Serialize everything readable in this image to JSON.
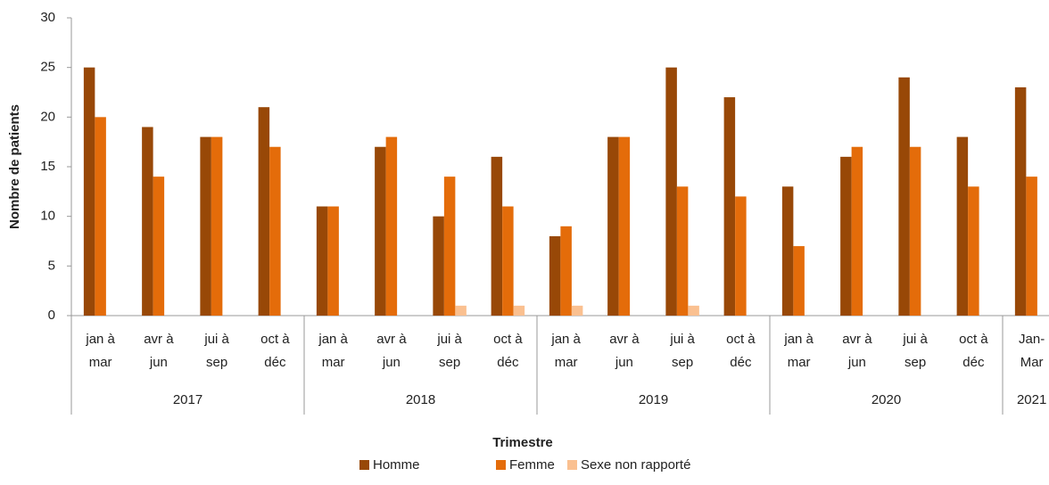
{
  "chart_data": {
    "type": "bar",
    "x_label": "Trimestre",
    "y_label": "Nombre de patients",
    "groups": [
      {
        "label": "2017",
        "categories": [
          [
            "jan à",
            "mar"
          ],
          [
            "avr à",
            "jun"
          ],
          [
            "jui à",
            "sep"
          ],
          [
            "oct à",
            "déc"
          ]
        ]
      },
      {
        "label": "2018",
        "categories": [
          [
            "jan à",
            "mar"
          ],
          [
            "avr à",
            "jun"
          ],
          [
            "jui à",
            "sep"
          ],
          [
            "oct à",
            "déc"
          ]
        ]
      },
      {
        "label": "2019",
        "categories": [
          [
            "jan à",
            "mar"
          ],
          [
            "avr à",
            "jun"
          ],
          [
            "jui à",
            "sep"
          ],
          [
            "oct à",
            "déc"
          ]
        ]
      },
      {
        "label": "2020",
        "categories": [
          [
            "jan à",
            "mar"
          ],
          [
            "avr à",
            "jun"
          ],
          [
            "jui à",
            "sep"
          ],
          [
            "oct à",
            "déc"
          ]
        ]
      },
      {
        "label": "2021",
        "categories": [
          [
            "Jan-",
            "Mar"
          ]
        ]
      }
    ],
    "series": [
      {
        "name": "Homme",
        "color": "#984807",
        "values": [
          25,
          19,
          18,
          21,
          11,
          17,
          10,
          16,
          8,
          18,
          25,
          22,
          13,
          16,
          24,
          18,
          23
        ]
      },
      {
        "name": "Femme",
        "color": "#e46c0a",
        "values": [
          20,
          14,
          18,
          17,
          11,
          18,
          14,
          11,
          9,
          18,
          13,
          12,
          7,
          17,
          17,
          13,
          14
        ]
      },
      {
        "name": "Sexe non rapporté",
        "color": "#fac090",
        "values": [
          0,
          0,
          0,
          0,
          0,
          0,
          1,
          1,
          1,
          0,
          1,
          0,
          0,
          0,
          0,
          0,
          0
        ]
      }
    ],
    "ylim": [
      0,
      30
    ],
    "yticks": [
      0,
      5,
      10,
      15,
      20,
      25,
      30
    ],
    "legend": "bottom"
  }
}
